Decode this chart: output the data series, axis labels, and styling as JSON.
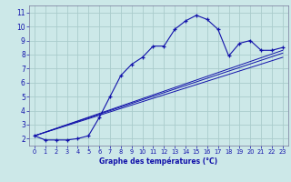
{
  "title": "Graphe des températures (°C)",
  "bg_color": "#cce8e8",
  "grid_color": "#aacccc",
  "line_color": "#1111aa",
  "xlim": [
    -0.5,
    23.5
  ],
  "ylim": [
    1.5,
    11.5
  ],
  "xticks": [
    0,
    1,
    2,
    3,
    4,
    5,
    6,
    7,
    8,
    9,
    10,
    11,
    12,
    13,
    14,
    15,
    16,
    17,
    18,
    19,
    20,
    21,
    22,
    23
  ],
  "yticks": [
    2,
    3,
    4,
    5,
    6,
    7,
    8,
    9,
    10,
    11
  ],
  "curve1_x": [
    0,
    1,
    2,
    3,
    4,
    5,
    6,
    7,
    8,
    9,
    10,
    11,
    12,
    13,
    14,
    15,
    16,
    17,
    18,
    19,
    20,
    21,
    22,
    23
  ],
  "curve1_y": [
    2.2,
    1.9,
    1.9,
    1.9,
    2.0,
    2.2,
    3.5,
    5.0,
    6.5,
    7.3,
    7.8,
    8.6,
    8.6,
    9.8,
    10.4,
    10.8,
    10.5,
    9.8,
    7.9,
    8.8,
    9.0,
    8.3,
    8.3,
    8.5
  ],
  "line1_x": [
    0,
    23
  ],
  "line1_y": [
    2.2,
    8.3
  ],
  "line2_x": [
    0,
    23
  ],
  "line2_y": [
    2.2,
    8.1
  ],
  "line3_x": [
    0,
    23
  ],
  "line3_y": [
    2.2,
    7.8
  ]
}
